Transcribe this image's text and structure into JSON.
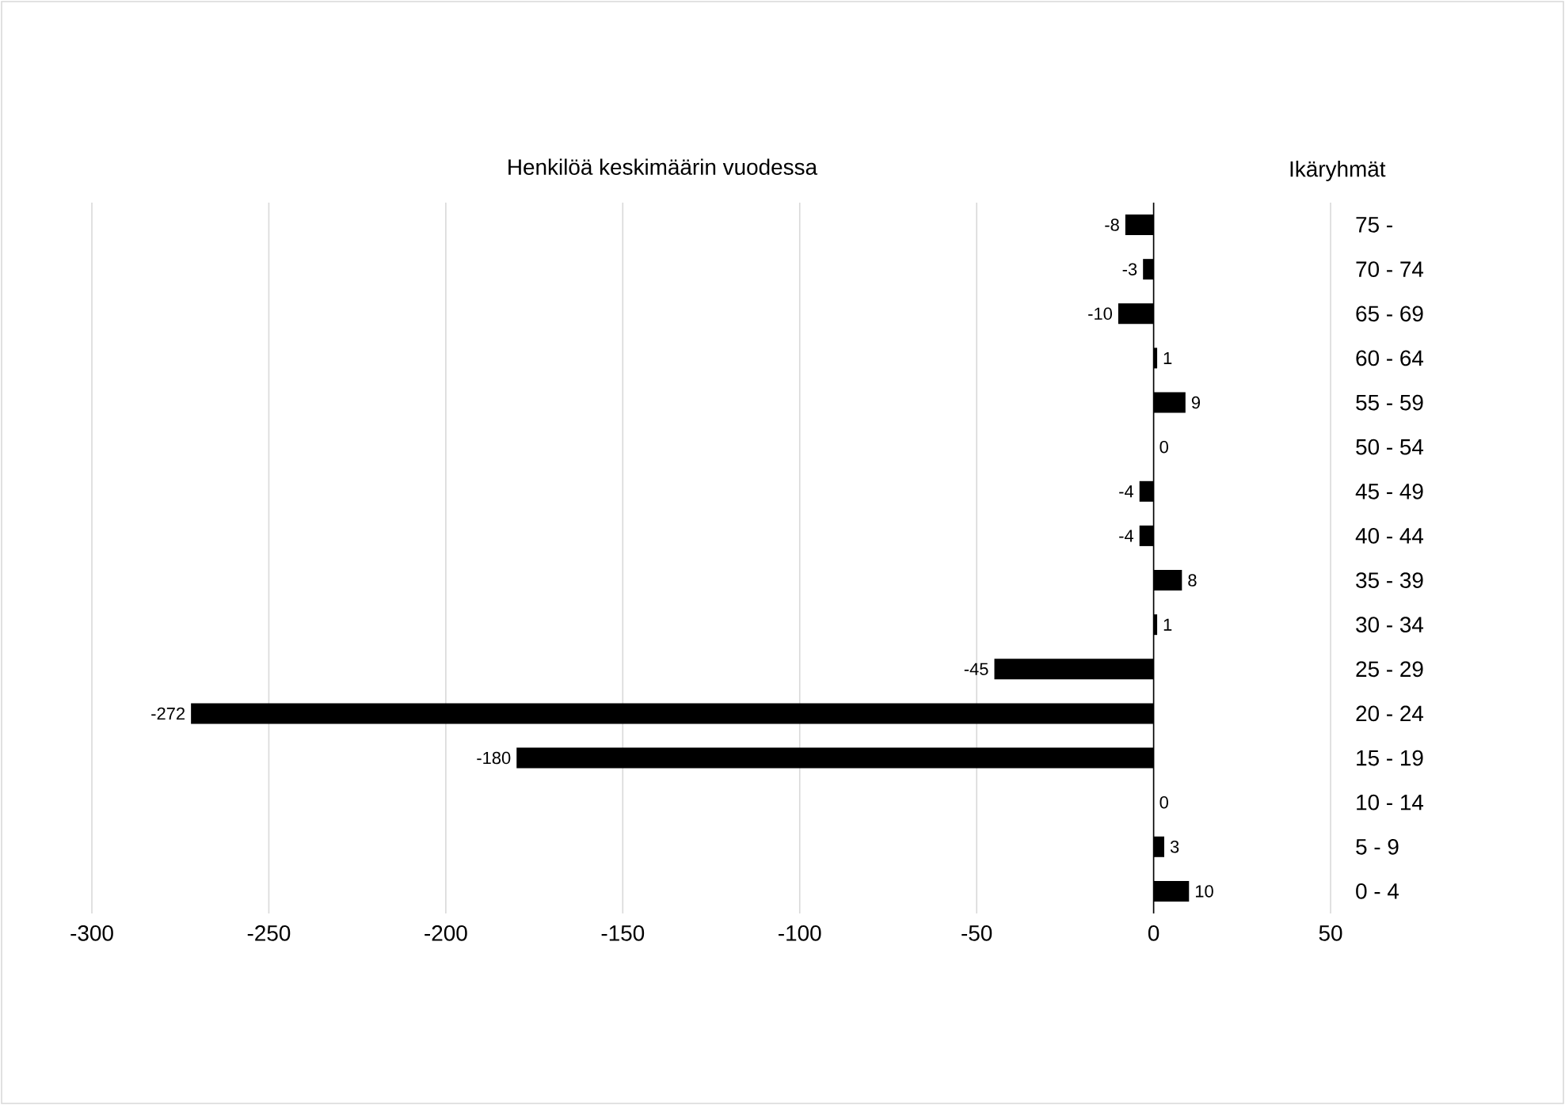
{
  "chart_data": {
    "type": "bar",
    "orientation": "horizontal",
    "title": "Henkilöä keskimäärin vuodessa",
    "ylabel": "Ikäryhmät",
    "categories": [
      "75 -",
      "70 - 74",
      "65 - 69",
      "60 - 64",
      "55 - 59",
      "50 - 54",
      "45 - 49",
      "40 - 44",
      "35 - 39",
      "30 - 34",
      "25 - 29",
      "20 - 24",
      "15 - 19",
      "10 - 14",
      "5 - 9",
      "0 - 4"
    ],
    "values": [
      -8,
      -3,
      -10,
      1,
      9,
      0,
      -4,
      -4,
      8,
      1,
      -45,
      -272,
      -180,
      0,
      3,
      10
    ],
    "color": "#000000",
    "data_labels": true,
    "grid": "x",
    "xlim": [
      -300,
      50
    ],
    "xticks": [
      -300,
      -250,
      -200,
      -150,
      -100,
      -50,
      0,
      50
    ]
  }
}
